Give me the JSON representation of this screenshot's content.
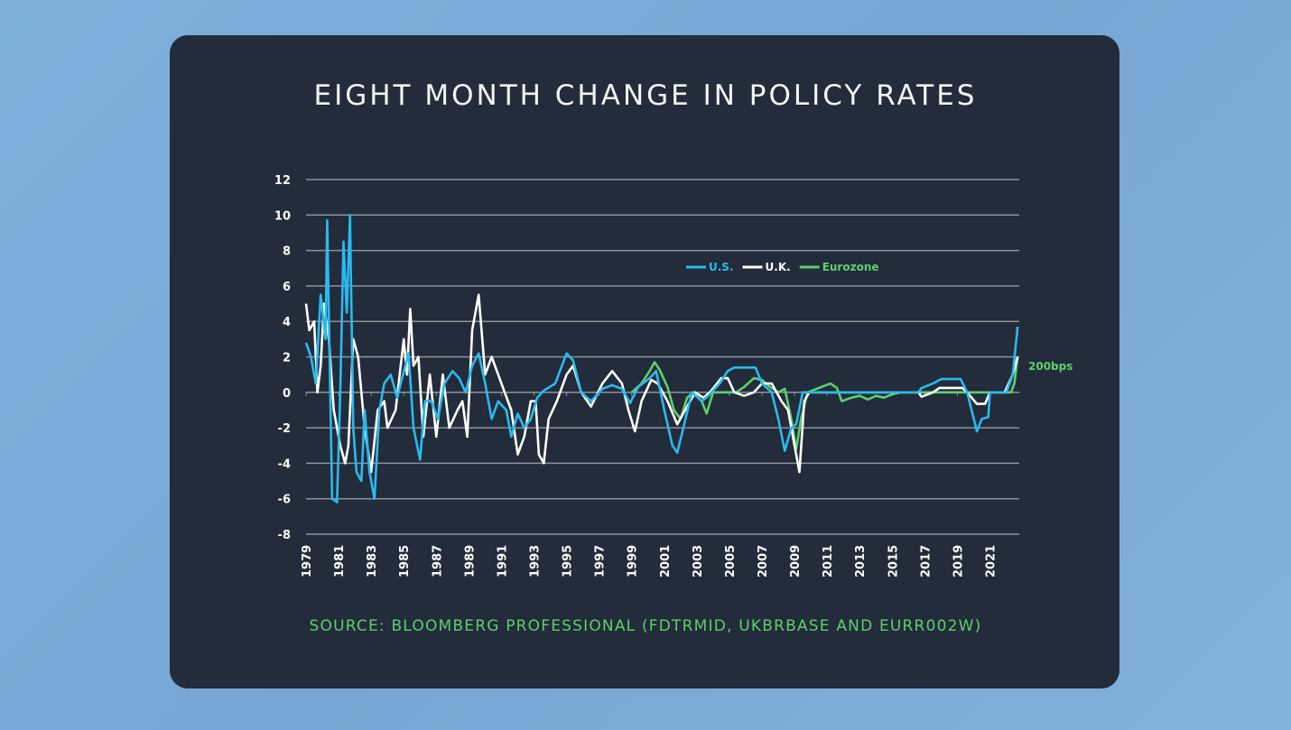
{
  "chart_data": {
    "type": "line",
    "title": "EIGHT MONTH CHANGE IN POLICY RATES",
    "source": "SOURCE: BLOOMBERG PROFESSIONAL (FDTRMID, UKBRBASE AND EURR002W)",
    "xlabel": "",
    "ylabel": "",
    "xlim": [
      1979,
      2022.8
    ],
    "ylim": [
      -8,
      12
    ],
    "yticks": [
      12,
      10,
      8,
      6,
      4,
      2,
      0,
      -2,
      -4,
      -6,
      -8
    ],
    "xticks": [
      "1979",
      "1981",
      "1983",
      "1985",
      "1987",
      "1989",
      "1991",
      "1993",
      "1995",
      "1997",
      "1999",
      "2001",
      "2003",
      "2005",
      "2007",
      "2009",
      "2011",
      "2013",
      "2015",
      "2017",
      "2019",
      "2021"
    ],
    "grid": true,
    "legend_placement": "top-right",
    "annotation": {
      "text": "200bps",
      "color": "#5ecf6a"
    },
    "series": [
      {
        "name": "U.S.",
        "color": "#2bb9f0",
        "points": [
          [
            1979.0,
            2.8
          ],
          [
            1979.3,
            2
          ],
          [
            1979.6,
            0.5
          ],
          [
            1979.9,
            5.5
          ],
          [
            1980.2,
            3
          ],
          [
            1980.3,
            9.7
          ],
          [
            1980.6,
            -6
          ],
          [
            1980.9,
            -6.2
          ],
          [
            1981.1,
            0
          ],
          [
            1981.3,
            8.5
          ],
          [
            1981.5,
            4.5
          ],
          [
            1981.7,
            10
          ],
          [
            1981.9,
            -2
          ],
          [
            1982.1,
            -4.5
          ],
          [
            1982.4,
            -5
          ],
          [
            1982.6,
            -1
          ],
          [
            1982.9,
            -4.5
          ],
          [
            1983.2,
            -6
          ],
          [
            1983.5,
            -1
          ],
          [
            1983.8,
            0.5
          ],
          [
            1984.2,
            1
          ],
          [
            1984.6,
            -0.3
          ],
          [
            1984.9,
            0.8
          ],
          [
            1985.3,
            2.2
          ],
          [
            1985.6,
            -2
          ],
          [
            1986.0,
            -3.8
          ],
          [
            1986.3,
            -0.5
          ],
          [
            1986.7,
            -0.5
          ],
          [
            1987.1,
            -1.5
          ],
          [
            1987.5,
            0.5
          ],
          [
            1988.0,
            1.2
          ],
          [
            1988.4,
            0.8
          ],
          [
            1988.8,
            0
          ],
          [
            1989.2,
            1.5
          ],
          [
            1989.6,
            2.2
          ],
          [
            1990.0,
            0.5
          ],
          [
            1990.4,
            -1.5
          ],
          [
            1990.8,
            -0.5
          ],
          [
            1991.3,
            -1
          ],
          [
            1991.6,
            -2.5
          ],
          [
            1992.0,
            -1.2
          ],
          [
            1992.4,
            -2
          ],
          [
            1992.8,
            -1.5
          ],
          [
            1993.2,
            -0.3
          ],
          [
            1993.6,
            0.1
          ],
          [
            1994.3,
            0.5
          ],
          [
            1995.0,
            2.2
          ],
          [
            1995.4,
            1.8
          ],
          [
            1995.9,
            0
          ],
          [
            1996.5,
            -0.5
          ],
          [
            1997.2,
            0.2
          ],
          [
            1997.8,
            0.4
          ],
          [
            1998.4,
            0.2
          ],
          [
            1998.9,
            -0.6
          ],
          [
            1999.4,
            0.3
          ],
          [
            2000.1,
            0.8
          ],
          [
            2000.5,
            1.2
          ],
          [
            2001.0,
            -1
          ],
          [
            2001.5,
            -3
          ],
          [
            2001.8,
            -3.4
          ],
          [
            2002.3,
            -1.5
          ],
          [
            2002.7,
            0
          ],
          [
            2003.3,
            -0.5
          ],
          [
            2003.7,
            -0.2
          ],
          [
            2004.4,
            0.5
          ],
          [
            2004.9,
            1.2
          ],
          [
            2005.3,
            1.4
          ],
          [
            2006.6,
            1.4
          ],
          [
            2007.0,
            0.5
          ],
          [
            2007.6,
            0
          ],
          [
            2008.0,
            -1.5
          ],
          [
            2008.4,
            -3.3
          ],
          [
            2008.8,
            -2
          ],
          [
            2009.1,
            -1.8
          ],
          [
            2009.5,
            0
          ],
          [
            2016.6,
            0
          ],
          [
            2016.8,
            0.25
          ],
          [
            2017.5,
            0.5
          ],
          [
            2018.0,
            0.75
          ],
          [
            2019.2,
            0.75
          ],
          [
            2019.6,
            0
          ],
          [
            2020.2,
            -2.2
          ],
          [
            2020.5,
            -1.5
          ],
          [
            2020.9,
            -1.4
          ],
          [
            2021.0,
            0
          ],
          [
            2022.0,
            0
          ],
          [
            2022.4,
            1
          ],
          [
            2022.7,
            3.7
          ]
        ]
      },
      {
        "name": "U.K.",
        "color": "#ffffff",
        "points": [
          [
            1979.0,
            5
          ],
          [
            1979.2,
            3.5
          ],
          [
            1979.5,
            4
          ],
          [
            1979.7,
            0
          ],
          [
            1979.9,
            1.5
          ],
          [
            1980.1,
            5
          ],
          [
            1980.4,
            3
          ],
          [
            1980.7,
            -1
          ],
          [
            1981.1,
            -3
          ],
          [
            1981.4,
            -4
          ],
          [
            1981.6,
            -3
          ],
          [
            1981.9,
            3
          ],
          [
            1982.2,
            2
          ],
          [
            1982.6,
            -2
          ],
          [
            1983.0,
            -4.5
          ],
          [
            1983.4,
            -1
          ],
          [
            1983.8,
            -0.5
          ],
          [
            1984.0,
            -2
          ],
          [
            1984.5,
            -1
          ],
          [
            1985.0,
            3
          ],
          [
            1985.2,
            1
          ],
          [
            1985.4,
            4.7
          ],
          [
            1985.6,
            1.5
          ],
          [
            1985.9,
            2
          ],
          [
            1986.2,
            -2.5
          ],
          [
            1986.6,
            1
          ],
          [
            1987.0,
            -2.5
          ],
          [
            1987.4,
            1
          ],
          [
            1987.8,
            -2
          ],
          [
            1988.3,
            -1
          ],
          [
            1988.6,
            -0.5
          ],
          [
            1988.9,
            -2.5
          ],
          [
            1989.2,
            3.5
          ],
          [
            1989.6,
            5.5
          ],
          [
            1990.0,
            1
          ],
          [
            1990.4,
            2
          ],
          [
            1990.8,
            1
          ],
          [
            1991.2,
            0
          ],
          [
            1991.6,
            -1
          ],
          [
            1992.0,
            -3.5
          ],
          [
            1992.4,
            -2.5
          ],
          [
            1992.8,
            -0.5
          ],
          [
            1993.1,
            -0.5
          ],
          [
            1993.3,
            -3.5
          ],
          [
            1993.6,
            -4
          ],
          [
            1993.9,
            -1.5
          ],
          [
            1994.4,
            -0.5
          ],
          [
            1995.0,
            1
          ],
          [
            1995.4,
            1.5
          ],
          [
            1995.9,
            0
          ],
          [
            1996.5,
            -0.8
          ],
          [
            1997.2,
            0.5
          ],
          [
            1997.8,
            1.2
          ],
          [
            1998.4,
            0.5
          ],
          [
            1998.8,
            -1
          ],
          [
            1999.2,
            -2.2
          ],
          [
            1999.6,
            -0.5
          ],
          [
            2000.2,
            0.7
          ],
          [
            2000.6,
            0.5
          ],
          [
            2001.2,
            -0.5
          ],
          [
            2001.8,
            -1.8
          ],
          [
            2002.4,
            -0.8
          ],
          [
            2002.9,
            0
          ],
          [
            2003.4,
            -0.3
          ],
          [
            2003.8,
            0
          ],
          [
            2004.5,
            0.8
          ],
          [
            2004.9,
            0.8
          ],
          [
            2005.3,
            0
          ],
          [
            2005.9,
            -0.2
          ],
          [
            2006.5,
            0
          ],
          [
            2007.0,
            0.5
          ],
          [
            2007.6,
            0.5
          ],
          [
            2008.2,
            -0.5
          ],
          [
            2008.6,
            -1
          ],
          [
            2009.0,
            -3
          ],
          [
            2009.3,
            -4.5
          ],
          [
            2009.6,
            -0.5
          ],
          [
            2009.9,
            0
          ],
          [
            2016.6,
            0
          ],
          [
            2016.8,
            -0.25
          ],
          [
            2017.5,
            0
          ],
          [
            2017.9,
            0.25
          ],
          [
            2019.3,
            0.25
          ],
          [
            2019.6,
            0
          ],
          [
            2020.2,
            -0.65
          ],
          [
            2020.7,
            -0.65
          ],
          [
            2021.0,
            0
          ],
          [
            2021.9,
            0
          ],
          [
            2022.4,
            1
          ],
          [
            2022.7,
            2
          ]
        ]
      },
      {
        "name": "Eurozone",
        "color": "#5ecf6a",
        "points": [
          [
            1999.0,
            0
          ],
          [
            1999.6,
            0.5
          ],
          [
            2000.1,
            1.2
          ],
          [
            2000.4,
            1.7
          ],
          [
            2000.7,
            1.3
          ],
          [
            2001.2,
            0.3
          ],
          [
            2001.6,
            -1
          ],
          [
            2002.0,
            -1.5
          ],
          [
            2002.4,
            -0.3
          ],
          [
            2002.8,
            0
          ],
          [
            2003.3,
            -0.5
          ],
          [
            2003.6,
            -1.2
          ],
          [
            2004.0,
            0
          ],
          [
            2005.4,
            0
          ],
          [
            2005.9,
            0.3
          ],
          [
            2006.5,
            0.8
          ],
          [
            2007.0,
            0.7
          ],
          [
            2007.5,
            0.3
          ],
          [
            2008.0,
            0
          ],
          [
            2008.4,
            0.2
          ],
          [
            2008.8,
            -1.5
          ],
          [
            2009.1,
            -3.2
          ],
          [
            2009.4,
            -1.5
          ],
          [
            2009.8,
            0
          ],
          [
            2011.2,
            0.5
          ],
          [
            2011.6,
            0.25
          ],
          [
            2011.9,
            -0.5
          ],
          [
            2012.5,
            -0.3
          ],
          [
            2013.0,
            -0.2
          ],
          [
            2013.5,
            -0.4
          ],
          [
            2014.0,
            -0.2
          ],
          [
            2014.5,
            -0.3
          ],
          [
            2015.0,
            -0.1
          ],
          [
            2015.5,
            0
          ],
          [
            2022.3,
            0
          ],
          [
            2022.5,
            0.5
          ],
          [
            2022.7,
            2
          ]
        ]
      }
    ]
  }
}
